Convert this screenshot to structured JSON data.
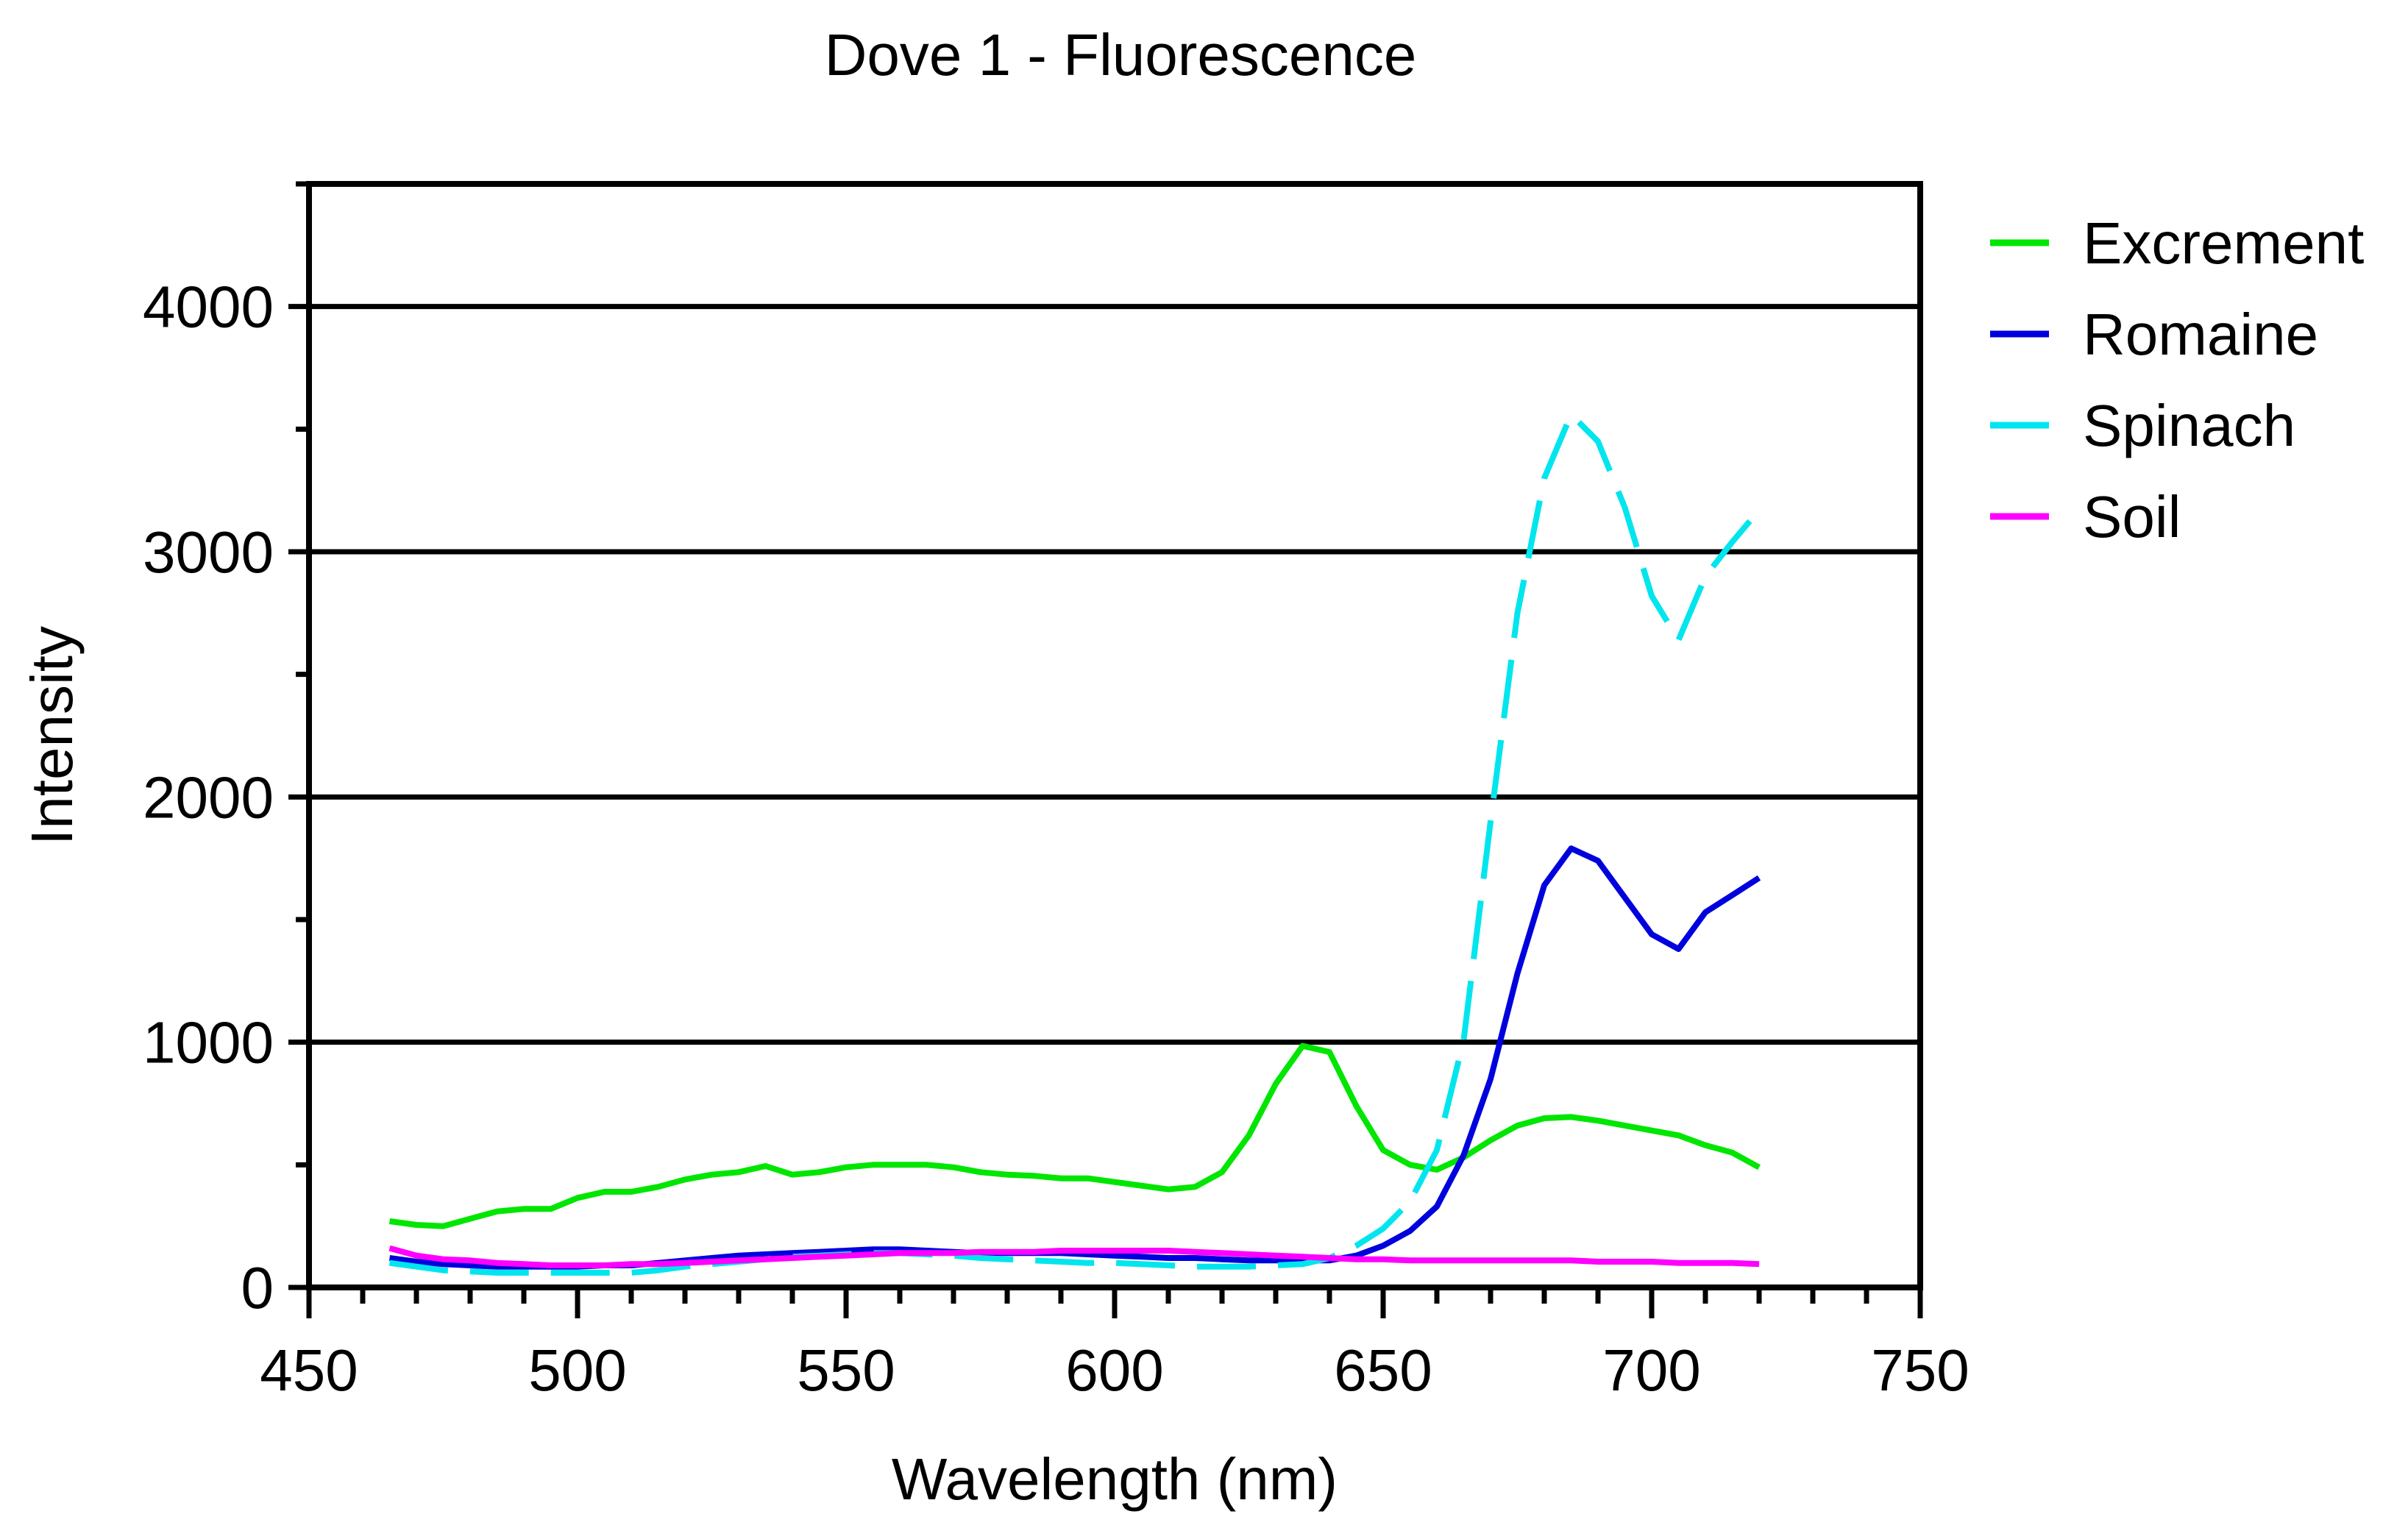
{
  "chart_data": {
    "type": "line",
    "title": "Dove 1 - Fluorescence",
    "xlabel": "Wavelength (nm)",
    "ylabel": "Intensity",
    "xlim": [
      450,
      750
    ],
    "ylim": [
      0,
      4500
    ],
    "x_ticks": [
      450,
      500,
      550,
      600,
      650,
      700,
      750
    ],
    "x_tick_labels": [
      "450",
      "500",
      "550",
      "600",
      "650",
      "700",
      "750"
    ],
    "y_ticks": [
      0,
      1000,
      2000,
      3000,
      4000
    ],
    "y_tick_labels": [
      "0",
      "1000",
      "2000",
      "3000",
      "4000"
    ],
    "x_minor_step": 10,
    "y_minor_step": 500,
    "gridlines": "horizontal at major y ticks",
    "legend_position": "right",
    "x": [
      465,
      470,
      475,
      480,
      485,
      490,
      495,
      500,
      505,
      510,
      515,
      520,
      525,
      530,
      535,
      540,
      545,
      550,
      555,
      560,
      565,
      570,
      575,
      580,
      585,
      590,
      595,
      600,
      605,
      610,
      615,
      620,
      625,
      630,
      635,
      640,
      645,
      650,
      655,
      660,
      665,
      670,
      675,
      680,
      685,
      690,
      695,
      700,
      705,
      710,
      715,
      720
    ],
    "series": [
      {
        "name": "Excrement",
        "color": "#00e600",
        "dash": "solid",
        "values": [
          270,
          255,
          250,
          280,
          310,
          320,
          320,
          365,
          390,
          390,
          410,
          440,
          460,
          470,
          495,
          460,
          470,
          490,
          500,
          500,
          500,
          490,
          470,
          460,
          455,
          445,
          445,
          430,
          415,
          400,
          410,
          470,
          620,
          830,
          985,
          960,
          740,
          560,
          500,
          480,
          530,
          600,
          660,
          690,
          695,
          680,
          660,
          640,
          620,
          580,
          550,
          490
        ]
      },
      {
        "name": "Romaine",
        "color": "#0000dd",
        "dash": "solid",
        "values": [
          120,
          105,
          95,
          90,
          85,
          85,
          85,
          85,
          90,
          90,
          100,
          110,
          120,
          130,
          135,
          140,
          145,
          150,
          155,
          155,
          150,
          145,
          140,
          140,
          140,
          140,
          135,
          130,
          125,
          120,
          120,
          115,
          110,
          110,
          110,
          110,
          130,
          170,
          230,
          330,
          540,
          850,
          1280,
          1640,
          1790,
          1740,
          1590,
          1440,
          1380,
          1530,
          1600,
          1670
        ]
      },
      {
        "name": "Spinach",
        "color": "#00e5ee",
        "dash": "dashed",
        "values": [
          100,
          85,
          70,
          65,
          60,
          60,
          60,
          60,
          60,
          60,
          70,
          85,
          95,
          105,
          115,
          125,
          130,
          135,
          140,
          140,
          135,
          130,
          120,
          115,
          110,
          105,
          100,
          100,
          95,
          90,
          85,
          85,
          85,
          90,
          95,
          120,
          170,
          240,
          350,
          560,
          1010,
          1900,
          2750,
          3300,
          3560,
          3450,
          3180,
          2820,
          2640,
          2900,
          3040,
          3170
        ]
      },
      {
        "name": "Soil",
        "color": "#ff00ff",
        "dash": "solid",
        "values": [
          160,
          130,
          115,
          110,
          100,
          95,
          90,
          90,
          90,
          95,
          95,
          100,
          105,
          110,
          115,
          120,
          125,
          130,
          135,
          140,
          140,
          140,
          145,
          145,
          145,
          150,
          150,
          150,
          150,
          150,
          145,
          140,
          135,
          130,
          125,
          120,
          115,
          115,
          110,
          110,
          110,
          110,
          110,
          110,
          110,
          105,
          105,
          105,
          100,
          100,
          100,
          95
        ]
      }
    ]
  }
}
